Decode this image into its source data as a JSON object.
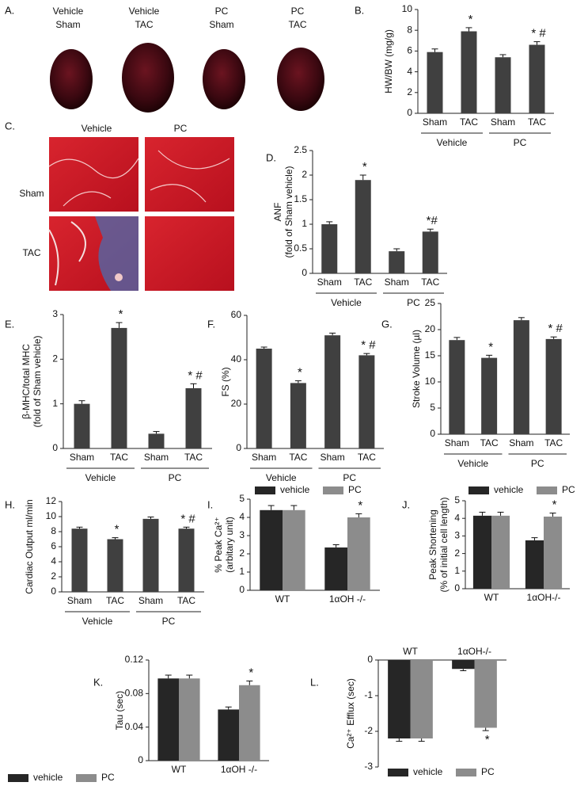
{
  "images": {
    "A": {
      "panel": "A.",
      "labels": [
        [
          "Vehicle",
          "Sham"
        ],
        [
          "Vehicle",
          "TAC"
        ],
        [
          "PC",
          "Sham"
        ],
        [
          "PC",
          "TAC"
        ]
      ]
    },
    "C": {
      "panel": "C.",
      "columns": [
        "Vehicle",
        "PC"
      ],
      "rows": [
        "Sham",
        "TAC"
      ]
    }
  },
  "chart_data": [
    {
      "type": "bar",
      "panel": "B.",
      "y_label": [
        "HW/BW (mg/g)"
      ],
      "categories": [
        "Sham",
        "TAC",
        "Sham",
        "TAC"
      ],
      "groups": [
        "Vehicle",
        "PC"
      ],
      "values": [
        5.9,
        7.9,
        5.4,
        6.6
      ],
      "errors": [
        0.3,
        0.35,
        0.25,
        0.3
      ],
      "annotations": [
        null,
        "*",
        null,
        "* #"
      ],
      "color": "#404040",
      "ylim": [
        0,
        10
      ],
      "yticks": [
        0,
        2,
        4,
        6,
        8,
        10
      ]
    },
    {
      "type": "bar",
      "panel": "D.",
      "y_label": [
        "ANF",
        "(fold of Sham vehicle)"
      ],
      "categories": [
        "Sham",
        "TAC",
        "Sham",
        "TAC"
      ],
      "groups": [
        "Vehicle",
        "PC"
      ],
      "values": [
        1.0,
        1.9,
        0.45,
        0.85
      ],
      "errors": [
        0.05,
        0.1,
        0.05,
        0.05
      ],
      "annotations": [
        null,
        "*",
        null,
        "*#"
      ],
      "color": "#404040",
      "ylim": [
        0,
        2.5
      ],
      "yticks": [
        0,
        0.5,
        1,
        1.5,
        2,
        2.5
      ]
    },
    {
      "type": "bar",
      "panel": "E.",
      "y_label": [
        "β-MHC/total MHC",
        "(fold of Sham vehicle)"
      ],
      "categories": [
        "Sham",
        "TAC",
        "Sham",
        "TAC"
      ],
      "groups": [
        "Vehicle",
        "PC"
      ],
      "values": [
        1.0,
        2.7,
        0.33,
        1.35
      ],
      "errors": [
        0.07,
        0.12,
        0.05,
        0.1
      ],
      "annotations": [
        null,
        "*",
        null,
        "* #"
      ],
      "color": "#404040",
      "ylim": [
        0,
        3
      ],
      "yticks": [
        0,
        1,
        2,
        3
      ]
    },
    {
      "type": "bar",
      "panel": "F.",
      "y_label": [
        "FS (%)"
      ],
      "categories": [
        "Sham",
        "TAC",
        "Sham",
        "TAC"
      ],
      "groups": [
        "Vehicle",
        "PC"
      ],
      "values": [
        45,
        29.5,
        51,
        42
      ],
      "errors": [
        0.7,
        1,
        1,
        0.8
      ],
      "annotations": [
        null,
        "*",
        null,
        "* #"
      ],
      "color": "#404040",
      "ylim": [
        0,
        60
      ],
      "yticks": [
        0,
        20,
        40,
        60
      ]
    },
    {
      "type": "bar",
      "panel": "G.",
      "y_label": [
        "Stroke Volume (µl)"
      ],
      "categories": [
        "Sham",
        "TAC",
        "Sham",
        "TAC"
      ],
      "groups": [
        "Vehicle",
        "PC"
      ],
      "values": [
        18,
        14.6,
        21.8,
        18.2
      ],
      "errors": [
        0.5,
        0.5,
        0.5,
        0.4
      ],
      "annotations": [
        null,
        "*",
        null,
        "* #"
      ],
      "color": "#404040",
      "ylim": [
        0,
        25
      ],
      "yticks": [
        0,
        5,
        10,
        15,
        20,
        25
      ]
    },
    {
      "type": "bar",
      "panel": "H.",
      "y_label": [
        "Cardiac Output  ml/min"
      ],
      "categories": [
        "Sham",
        "TAC",
        "Sham",
        "TAC"
      ],
      "groups": [
        "Vehicle",
        "PC"
      ],
      "values": [
        8.4,
        7.0,
        9.7,
        8.4
      ],
      "errors": [
        0.2,
        0.2,
        0.25,
        0.2
      ],
      "annotations": [
        null,
        "*",
        null,
        "* #"
      ],
      "color": "#404040",
      "ylim": [
        0,
        12
      ],
      "yticks": [
        0,
        2,
        4,
        6,
        8,
        10,
        12
      ]
    },
    {
      "type": "grouped_bar",
      "panel": "I.",
      "y_label": [
        "% Peak Ca²⁺",
        "(arbitary unit)"
      ],
      "categories": [
        "WT",
        "1αOH -/-"
      ],
      "legend": "top",
      "series": [
        {
          "name": "vehicle",
          "color": "#262626",
          "values": [
            4.4,
            2.35
          ],
          "errors": [
            0.25,
            0.15
          ],
          "annotations": [
            null,
            null
          ]
        },
        {
          "name": "PC",
          "color": "#8c8c8c",
          "values": [
            4.4,
            4.0
          ],
          "errors": [
            0.25,
            0.2
          ],
          "annotations": [
            null,
            "*"
          ]
        }
      ],
      "ylim": [
        0,
        5
      ],
      "yticks": [
        0,
        1,
        2,
        3,
        4,
        5
      ]
    },
    {
      "type": "grouped_bar",
      "panel": "J.",
      "y_label": [
        "Peak Shortening",
        "(% of initial cell length)"
      ],
      "categories": [
        "WT",
        "1αOH-/-"
      ],
      "legend": "top",
      "series": [
        {
          "name": "vehicle",
          "color": "#262626",
          "values": [
            4.15,
            2.75
          ],
          "errors": [
            0.2,
            0.15
          ],
          "annotations": [
            null,
            null
          ]
        },
        {
          "name": "PC",
          "color": "#8c8c8c",
          "values": [
            4.15,
            4.1
          ],
          "errors": [
            0.2,
            0.2
          ],
          "annotations": [
            null,
            "*"
          ]
        }
      ],
      "ylim": [
        0,
        5
      ],
      "yticks": [
        0,
        1,
        2,
        3,
        4,
        5
      ]
    },
    {
      "type": "grouped_bar",
      "panel": "K.",
      "y_label": [
        "Tau (sec)"
      ],
      "categories": [
        "WT",
        "1αOH -/-"
      ],
      "legend": "bottom",
      "series": [
        {
          "name": "vehicle",
          "color": "#262626",
          "values": [
            0.098,
            0.061
          ],
          "errors": [
            0.004,
            0.003
          ],
          "annotations": [
            null,
            null
          ]
        },
        {
          "name": "PC",
          "color": "#8c8c8c",
          "values": [
            0.098,
            0.09
          ],
          "errors": [
            0.004,
            0.005
          ],
          "annotations": [
            null,
            "*"
          ]
        }
      ],
      "ylim": [
        0,
        0.12
      ],
      "yticks": [
        0,
        0.04,
        0.08,
        0.12
      ]
    },
    {
      "type": "grouped_bar",
      "panel": "L.",
      "y_label": [
        "Ca²⁺ Efflux (sec)"
      ],
      "categories": [
        "WT",
        "1αOH-/-"
      ],
      "legend": "bottom",
      "series": [
        {
          "name": "vehicle",
          "color": "#262626",
          "values": [
            -2.2,
            -0.25
          ],
          "errors": [
            0.08,
            0.05
          ],
          "annotations": [
            null,
            null
          ]
        },
        {
          "name": "PC",
          "color": "#8c8c8c",
          "values": [
            -2.2,
            -1.9
          ],
          "errors": [
            0.08,
            0.08
          ],
          "annotations": [
            null,
            "*"
          ]
        }
      ],
      "ylim": [
        -3,
        0
      ],
      "yticks": [
        0,
        -1,
        -2,
        -3
      ]
    }
  ]
}
